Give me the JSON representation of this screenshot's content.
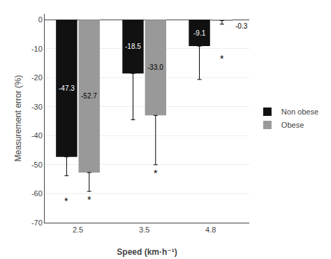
{
  "chart_data": {
    "type": "bar",
    "categories": [
      "2.5",
      "3.5",
      "4.8"
    ],
    "series": [
      {
        "name": "Non obese",
        "color": "#111111",
        "values": [
          -47.3,
          -18.5,
          -9.1
        ],
        "value_labels": [
          "-47.3",
          "-18.5",
          "-9.1"
        ],
        "error_down": [
          6.5,
          16.0,
          11.5
        ]
      },
      {
        "name": "Obese",
        "color": "#999999",
        "values": [
          -52.7,
          -33.0,
          -0.3
        ],
        "value_labels": [
          "-52.7",
          "-33.0",
          "-0.3"
        ],
        "error_down": [
          6.5,
          17.0,
          1.2
        ]
      }
    ],
    "annotations": [
      {
        "series": "Non obese",
        "category": "2.5",
        "y": -62.5,
        "text": "*"
      },
      {
        "series": "Obese",
        "category": "2.5",
        "y": -62.0,
        "text": "*"
      },
      {
        "series": "Obese",
        "category": "3.5",
        "y": -53.0,
        "text": "*"
      },
      {
        "series": "Obese",
        "category": "4.8",
        "y": -13.5,
        "text": "*"
      }
    ],
    "xlabel": "Speed (km·h⁻¹)",
    "ylabel": "Measurement error (%)",
    "ylim": [
      -70,
      2
    ],
    "yticks": [
      0,
      -10,
      -20,
      -30,
      -40,
      -50,
      -60,
      -70
    ],
    "grid": true,
    "legend": "right",
    "data_labels": true
  }
}
